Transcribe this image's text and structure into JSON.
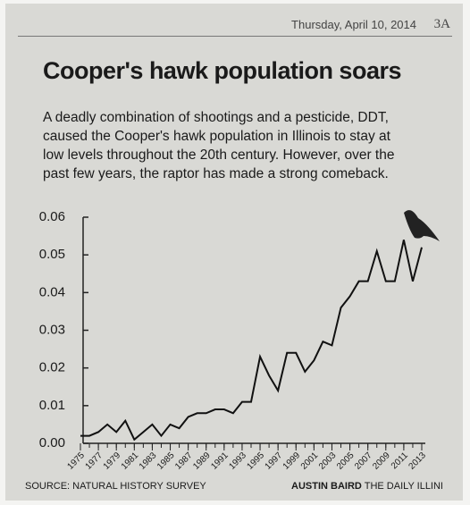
{
  "header": {
    "date": "Thursday, April 10, 2014",
    "page": "3A"
  },
  "chart_data": {
    "type": "line",
    "title": "Cooper's hawk population soars",
    "subtitle": [
      "A deadly combination of shootings and a pesticide, DDT,",
      "caused the Cooper's hawk population in Illinois to stay at",
      "low levels throughout the 20th century. However, over the",
      "past few years, the raptor has made a strong comeback."
    ],
    "x": [
      1975,
      1976,
      1977,
      1978,
      1979,
      1980,
      1981,
      1982,
      1983,
      1984,
      1985,
      1986,
      1987,
      1988,
      1989,
      1990,
      1991,
      1992,
      1993,
      1994,
      1995,
      1996,
      1997,
      1998,
      1999,
      2000,
      2001,
      2002,
      2003,
      2004,
      2005,
      2006,
      2007,
      2008,
      2009,
      2010,
      2011,
      2012,
      2013
    ],
    "values": [
      0.002,
      0.002,
      0.003,
      0.005,
      0.003,
      0.006,
      0.001,
      0.003,
      0.005,
      0.002,
      0.005,
      0.004,
      0.007,
      0.008,
      0.008,
      0.009,
      0.009,
      0.008,
      0.011,
      0.011,
      0.023,
      0.018,
      0.014,
      0.024,
      0.024,
      0.019,
      0.022,
      0.027,
      0.026,
      0.036,
      0.039,
      0.043,
      0.043,
      0.051,
      0.043,
      0.043,
      0.054,
      0.043,
      0.052
    ],
    "color": "#111111",
    "xlim": [
      1975,
      2013
    ],
    "xticks": [
      1975,
      1977,
      1979,
      1981,
      1983,
      1985,
      1987,
      1989,
      1991,
      1993,
      1995,
      1997,
      1999,
      2001,
      2003,
      2005,
      2007,
      2009,
      2011,
      2013
    ],
    "ylim": [
      0,
      0.06
    ],
    "yticks": [
      {
        "value": 0,
        "label": "0.00"
      },
      0.01,
      0.02,
      0.03,
      0.04,
      0.05,
      0.06
    ],
    "source": "SOURCE: NATURAL HISTORY SURVEY",
    "credit_name": "AUSTIN BAIRD",
    "credit_org": "THE DAILY ILLINI"
  }
}
